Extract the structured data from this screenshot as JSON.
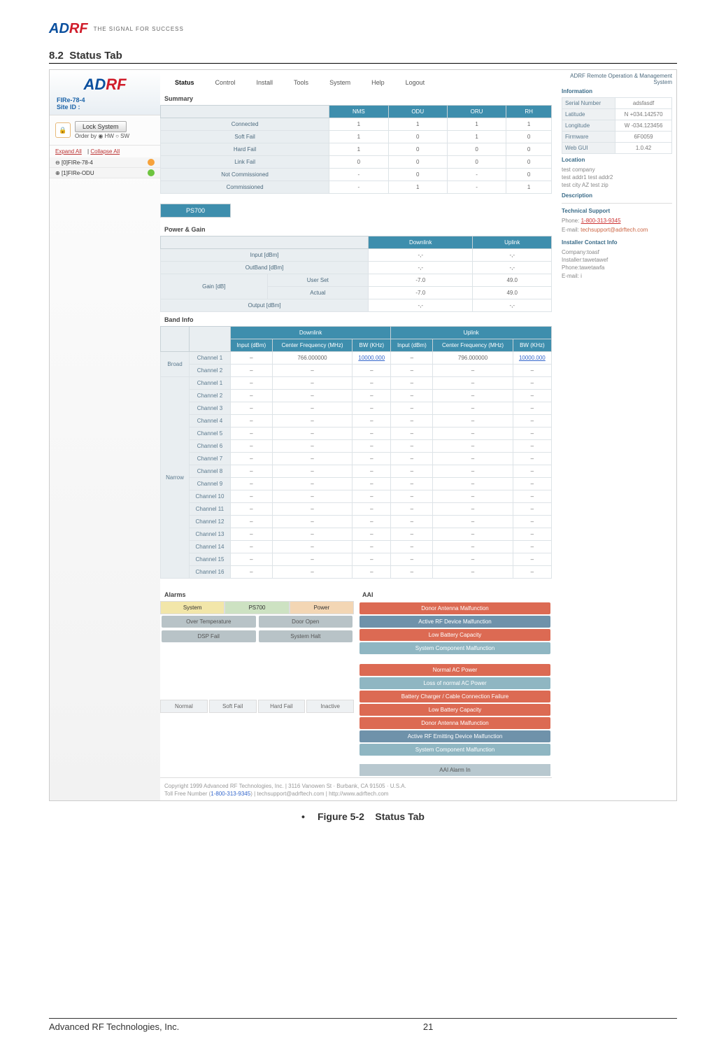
{
  "header": {
    "brand_a": "AD",
    "brand_rf": "RF",
    "tagline": "THE SIGNAL FOR SUCCESS"
  },
  "doc": {
    "section_num": "8.2",
    "section_title": "Status Tab",
    "figure": "Figure 5-2",
    "figure_name": "Status Tab"
  },
  "sidebar": {
    "product": "FIRe-78-4",
    "site_label": "Site ID :",
    "lock": "Lock System",
    "orderby": "Order by",
    "hw": "HW",
    "sw": "SW",
    "expand": "Expand All",
    "collapse": "Collapse All",
    "tree": [
      {
        "label": "[0]FIRe-78-4"
      },
      {
        "label": "[1]FIRe-ODU"
      }
    ]
  },
  "tabs": [
    "Status",
    "Control",
    "Install",
    "Tools",
    "System",
    "Help",
    "Logout"
  ],
  "summary": {
    "title": "Summary",
    "cols": [
      "NMS",
      "ODU",
      "ORU",
      "RH"
    ],
    "rows": [
      {
        "label": "Connected",
        "vals": [
          "1",
          "1",
          "1",
          "1"
        ]
      },
      {
        "label": "Soft Fail",
        "vals": [
          "1",
          "0",
          "1",
          "0"
        ]
      },
      {
        "label": "Hard Fail",
        "vals": [
          "1",
          "0",
          "0",
          "0"
        ]
      },
      {
        "label": "Link Fail",
        "vals": [
          "0",
          "0",
          "0",
          "0"
        ]
      },
      {
        "label": "Not Commissioned",
        "vals": [
          "-",
          "0",
          "-",
          "0"
        ]
      },
      {
        "label": "Commissioned",
        "vals": [
          "-",
          "1",
          "-",
          "1"
        ]
      }
    ]
  },
  "ps_badge": "PS700",
  "power_gain": {
    "title": "Power & Gain",
    "cols": [
      "Downlink",
      "Uplink"
    ],
    "rows": [
      {
        "label": "Input [dBm]",
        "dl": "-,-",
        "ul": "-,-"
      },
      {
        "label": "OutBand [dBm]",
        "dl": "-,-",
        "ul": "-,-"
      }
    ],
    "gain_label": "Gain [dB]",
    "gain_rows": [
      {
        "label": "User Set",
        "dl": "-7.0",
        "ul": "49.0"
      },
      {
        "label": "Actual",
        "dl": "-7.0",
        "ul": "49.0"
      }
    ],
    "output": {
      "label": "Output [dBm]",
      "dl": "-,-",
      "ul": "-,-"
    }
  },
  "band": {
    "title": "Band Info",
    "head_dl": "Downlink",
    "head_ul": "Uplink",
    "sub": [
      "Input (dBm)",
      "Center Frequency (MHz)",
      "BW (KHz)",
      "Input (dBm)",
      "Center Frequency (MHz)",
      "BW (KHz)"
    ],
    "broad_label": "Broad",
    "broad": [
      {
        "ch": "Channel 1",
        "v": [
          "–",
          "766.000000",
          "10000.000",
          "–",
          "796.000000",
          "10000.000"
        ]
      },
      {
        "ch": "Channel 2",
        "v": [
          "–",
          "–",
          "–",
          "–",
          "–",
          "–"
        ]
      }
    ],
    "narrow_label": "Narrow",
    "narrow_count": 16
  },
  "alarms": {
    "title": "Alarms",
    "tabs": [
      "System",
      "PS700",
      "Power"
    ],
    "items": [
      {
        "label": "Over Temperature",
        "cls": "pill-gray"
      },
      {
        "label": "Door Open",
        "cls": "pill-gray"
      },
      {
        "label": "DSP Fail",
        "cls": "pill-gray"
      },
      {
        "label": "System Halt",
        "cls": "pill-gray"
      }
    ],
    "legend": [
      "Normal",
      "Soft Fail",
      "Hard Fail",
      "Inactive"
    ]
  },
  "aai": {
    "title": "AAI",
    "group1": [
      {
        "label": "Donor Antenna Malfunction",
        "cls": "pill-red"
      },
      {
        "label": "Active RF Device Malfunction",
        "cls": "pill-blue"
      },
      {
        "label": "Low Battery Capacity",
        "cls": "pill-red"
      },
      {
        "label": "System Component Malfunction",
        "cls": "pill-cyan"
      }
    ],
    "group2": [
      {
        "label": "Normal AC Power",
        "cls": "pill-red"
      },
      {
        "label": "Loss of normal AC Power",
        "cls": "pill-cyan"
      },
      {
        "label": "Battery Charger / Cable Connection Failure",
        "cls": "pill-red"
      },
      {
        "label": "Low Battery Capacity",
        "cls": "pill-red"
      },
      {
        "label": "Donor Antenna Malfunction",
        "cls": "pill-red"
      },
      {
        "label": "Active RF Emitting Device Malfunction",
        "cls": "pill-blue"
      },
      {
        "label": "System Component Malfunction",
        "cls": "pill-cyan"
      }
    ],
    "footer": "AAI Alarm In"
  },
  "right": {
    "system": "ADRF Remote Operation & Management System",
    "info": "Information",
    "rows": [
      {
        "l": "Serial Number",
        "v": "adsfasdf"
      },
      {
        "l": "Latitude",
        "v": "N +034.142570"
      },
      {
        "l": "Longitude",
        "v": "W -034.123456"
      },
      {
        "l": "Firmware",
        "v": "6F0059"
      },
      {
        "l": "Web GUI",
        "v": "1.0.42"
      }
    ],
    "loc_title": "Location",
    "loc": [
      "test company",
      "test addr1 test addr2",
      "test city AZ test zip"
    ],
    "desc_title": "Description",
    "ts_title": "Technical Support",
    "ts_phone_l": "Phone:",
    "ts_phone": "1-800-313-9345",
    "ts_email_l": "E-mail:",
    "ts_email": "techsupport@adrftech.com",
    "ic_title": "Installer Contact Info",
    "ic": [
      "Company:toasf",
      "Installer:tawetawef",
      "Phone:tawetawfa",
      "E-mail: i"
    ]
  },
  "ss_footer": {
    "line1": "Copyright 1999 Advanced RF Technologies, Inc. | 3116 Vanowen St · Burbank, CA 91505 · U.S.A.",
    "line2a": "Toll Free Number (",
    "line2link": "1-800-313-9345",
    "line2b": ") | techsupport@adrftech.com | http://www.adrftech.com"
  },
  "page_footer": {
    "company": "Advanced RF Technologies, Inc.",
    "page": "21"
  }
}
